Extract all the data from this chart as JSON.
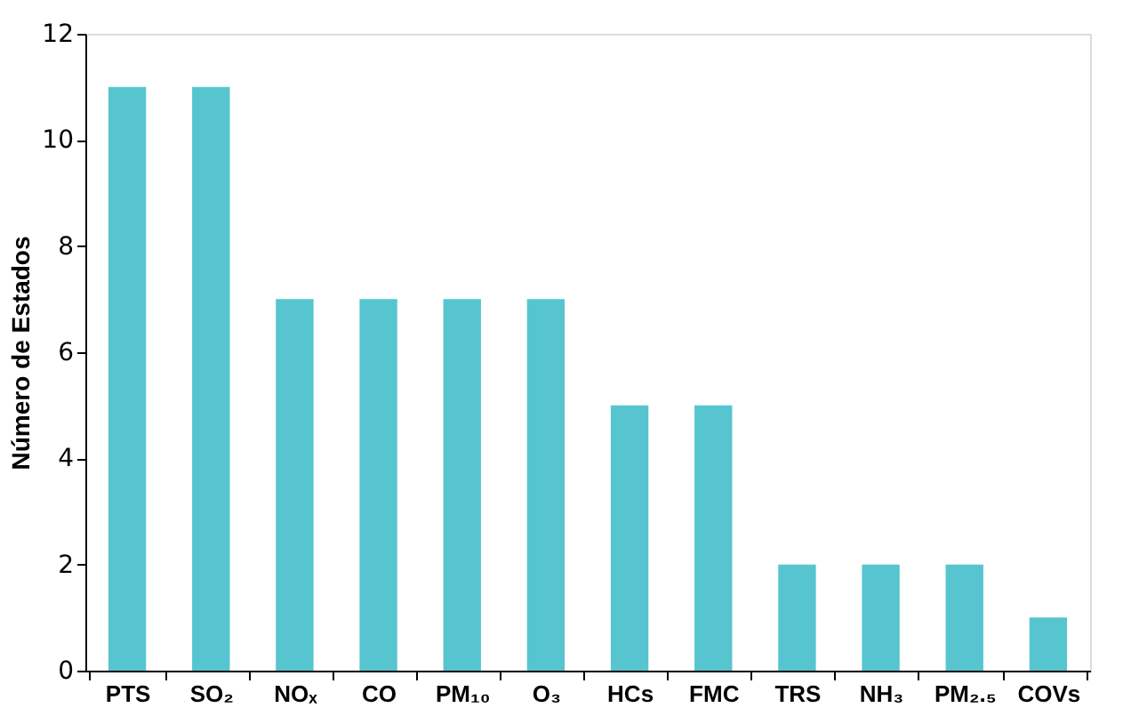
{
  "chart_data": {
    "type": "bar",
    "ylabel": "Número de Estados",
    "categories": [
      "PTS",
      "SO₂",
      "NOₓ",
      "CO",
      "PM₁₀",
      "O₃",
      "HCs",
      "FMC",
      "TRS",
      "NH₃",
      "PM₂.₅",
      "COVs"
    ],
    "values": [
      11,
      11,
      7,
      7,
      7,
      7,
      5,
      5,
      2,
      2,
      2,
      1
    ],
    "color": "#56c5d0",
    "ylim": [
      0,
      12
    ],
    "yticks": [
      0,
      2,
      4,
      6,
      8,
      10,
      12
    ],
    "grid": false
  }
}
